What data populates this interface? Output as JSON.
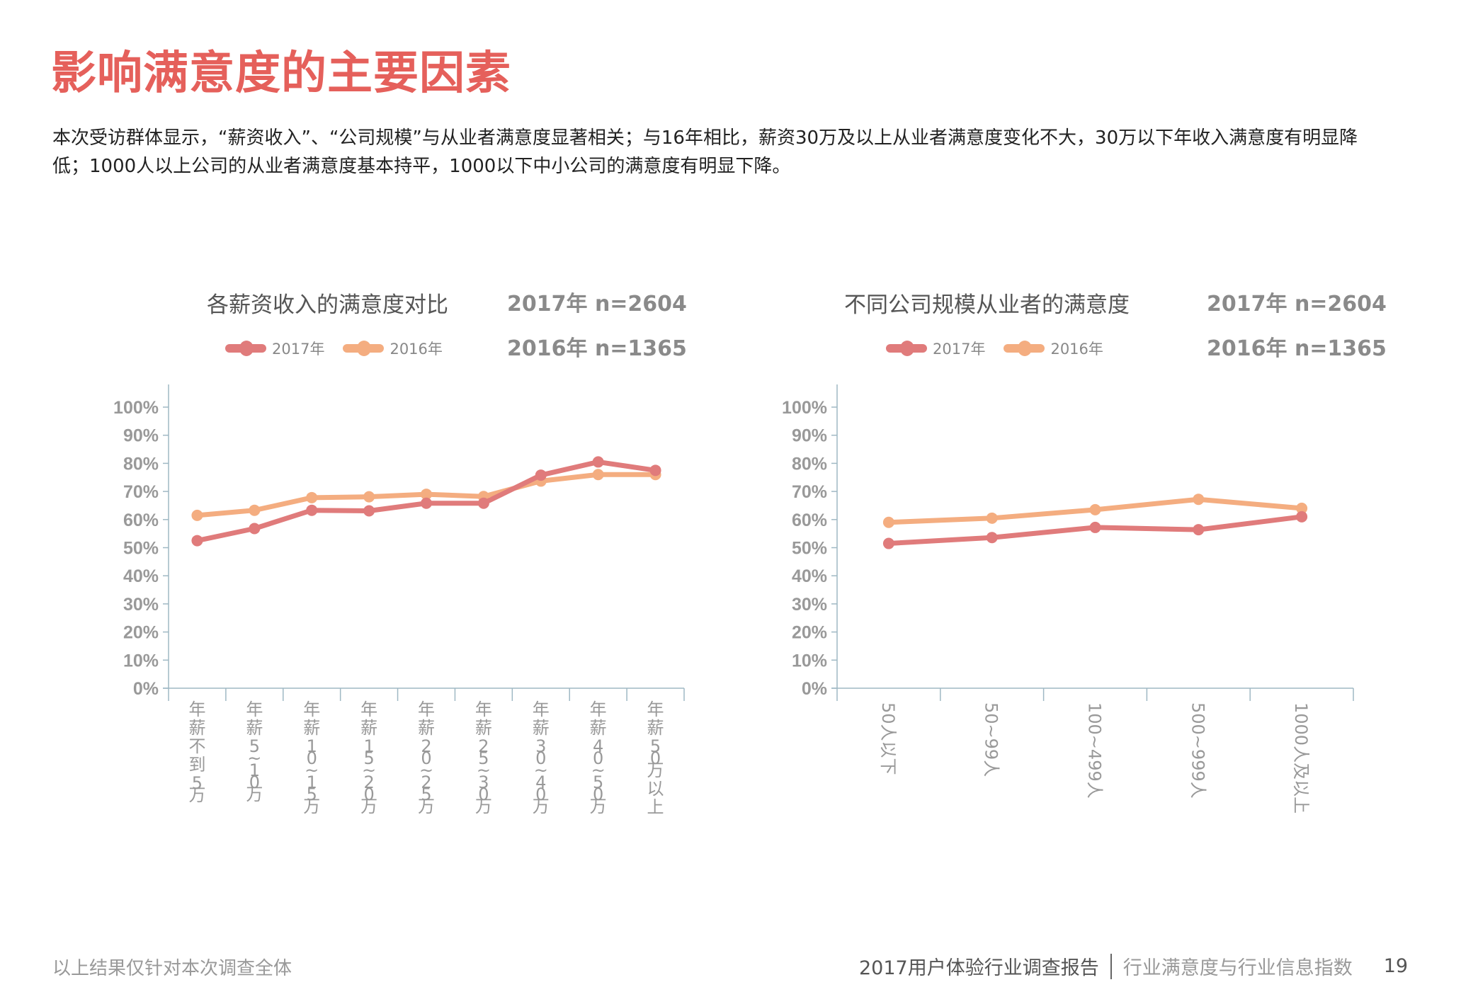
{
  "page": {
    "title": "影响满意度的主要因素",
    "paragraph": "本次受访群体显示，“薪资收入”、“公司规模”与从业者满意度显著相关；与16年相比，薪资30万及以上从业者满意度变化不大，30万以下年收入满意度有明显降低；1000人以上公司的从业者满意度基本持平，1000以下中小公司的满意度有明显下降。",
    "footer_note": "以上结果仅针对本次调查全体",
    "report_name": "2017用户体验行业调查报告",
    "section_name": "行业满意度与行业信息指数",
    "page_number": "19"
  },
  "colors": {
    "title": "#e5605b",
    "series_2017": "#e07b7b",
    "series_2016": "#f4ad80",
    "axis": "#9fb8c4",
    "tick_label": "#999999"
  },
  "chart_data": [
    {
      "type": "line",
      "title": "各薪资收入的满意度对比",
      "sample_notes": [
        "2017年 n=2604",
        "2016年 n=1365"
      ],
      "legend": [
        "2017年",
        "2016年"
      ],
      "legend_position": "top",
      "xlabel": "",
      "ylabel": "",
      "ylim": [
        0,
        100
      ],
      "yticks": [
        "0%",
        "10%",
        "20%",
        "30%",
        "40%",
        "50%",
        "60%",
        "70%",
        "80%",
        "90%",
        "100%"
      ],
      "grid": false,
      "categories": [
        "年薪不到5万",
        "年薪5~10万",
        "年薪10~15万",
        "年薪15~20万",
        "年薪20~25万",
        "年薪25~30万",
        "年薪30~40万",
        "年薪40~50万",
        "年薪50万以上"
      ],
      "series": [
        {
          "name": "2017年",
          "values": [
            52.5,
            56.8,
            63.3,
            63.1,
            65.8,
            65.8,
            75.8,
            80.5,
            77.5
          ]
        },
        {
          "name": "2016年",
          "values": [
            61.5,
            63.3,
            67.8,
            68.1,
            69.0,
            68.2,
            73.7,
            76.0,
            76.0
          ]
        }
      ]
    },
    {
      "type": "line",
      "title": "不同公司规模从业者的满意度",
      "sample_notes": [
        "2017年 n=2604",
        "2016年 n=1365"
      ],
      "legend": [
        "2017年",
        "2016年"
      ],
      "legend_position": "top",
      "xlabel": "",
      "ylabel": "",
      "ylim": [
        0,
        100
      ],
      "yticks": [
        "0%",
        "10%",
        "20%",
        "30%",
        "40%",
        "50%",
        "60%",
        "70%",
        "80%",
        "90%",
        "100%"
      ],
      "grid": false,
      "categories": [
        "50人以下",
        "50~99人",
        "100~499人",
        "500~999人",
        "1000人及以上"
      ],
      "series": [
        {
          "name": "2017年",
          "values": [
            51.5,
            53.6,
            57.2,
            56.4,
            61.0
          ]
        },
        {
          "name": "2016年",
          "values": [
            59.0,
            60.5,
            63.5,
            67.2,
            64.0
          ]
        }
      ]
    }
  ]
}
